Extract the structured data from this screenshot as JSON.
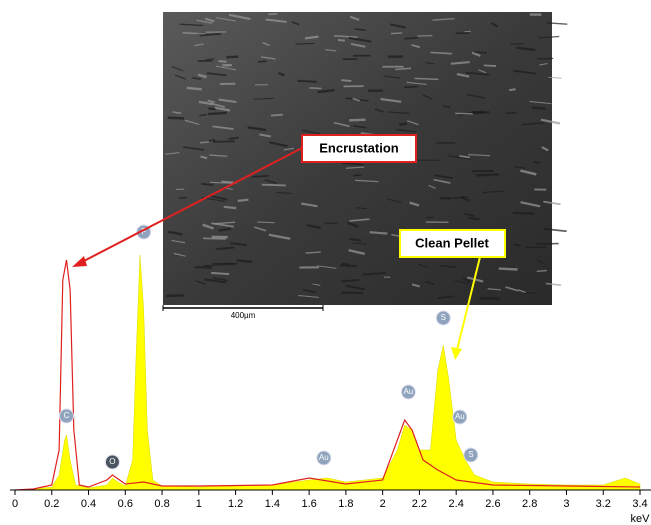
{
  "chart_data": {
    "type": "spectrum",
    "xlabel": "keV",
    "xlim": [
      0,
      3.4
    ],
    "xticks": [
      0,
      0.2,
      0.4,
      0.6,
      0.8,
      1,
      1.2,
      1.4,
      1.6,
      1.8,
      2,
      2.2,
      2.4,
      2.6,
      2.8,
      3,
      3.2,
      3.4
    ],
    "ylim": [
      0,
      250
    ],
    "series": [
      {
        "color": "#ffff00",
        "style": "area",
        "x": [
          0,
          0.1,
          0.2,
          0.24,
          0.27,
          0.28,
          0.3,
          0.33,
          0.4,
          0.5,
          0.53,
          0.56,
          0.6,
          0.64,
          0.66,
          0.68,
          0.7,
          0.72,
          0.75,
          0.8,
          1.0,
          1.2,
          1.4,
          1.6,
          1.7,
          1.8,
          2.0,
          2.08,
          2.12,
          2.16,
          2.2,
          2.26,
          2.3,
          2.33,
          2.36,
          2.4,
          2.45,
          2.5,
          2.6,
          2.8,
          3.0,
          3.2,
          3.32,
          3.4
        ],
        "values": [
          0,
          1,
          3,
          15,
          50,
          55,
          30,
          5,
          2,
          5,
          12,
          8,
          4,
          30,
          140,
          235,
          180,
          60,
          10,
          4,
          3,
          4,
          5,
          10,
          12,
          8,
          12,
          40,
          65,
          60,
          40,
          40,
          120,
          145,
          110,
          50,
          30,
          15,
          8,
          6,
          5,
          5,
          12,
          6
        ]
      },
      {
        "color": "#e02020",
        "style": "line",
        "x": [
          0,
          0.1,
          0.2,
          0.24,
          0.26,
          0.28,
          0.3,
          0.32,
          0.35,
          0.4,
          0.5,
          0.53,
          0.6,
          0.7,
          0.8,
          1.0,
          1.4,
          1.6,
          1.8,
          2.0,
          2.08,
          2.12,
          2.16,
          2.22,
          2.3,
          2.4,
          2.6,
          3.0,
          3.4
        ],
        "values": [
          0,
          1,
          5,
          40,
          210,
          230,
          200,
          60,
          5,
          3,
          10,
          15,
          6,
          8,
          4,
          4,
          5,
          12,
          6,
          10,
          50,
          70,
          60,
          30,
          20,
          10,
          5,
          4,
          3
        ]
      }
    ],
    "peak_labels": [
      {
        "text": "C",
        "x": 0.28,
        "y": 66
      },
      {
        "text": "O",
        "x": 0.53,
        "y": 20
      },
      {
        "text": "F",
        "x": 0.7,
        "y": 250
      },
      {
        "text": "Au",
        "x": 1.68,
        "y": 24
      },
      {
        "text": "Au",
        "x": 2.14,
        "y": 90
      },
      {
        "text": "S",
        "x": 2.33,
        "y": 164
      },
      {
        "text": "Au",
        "x": 2.42,
        "y": 65
      },
      {
        "text": "S",
        "x": 2.48,
        "y": 27
      }
    ],
    "scale_bar_label": "400µm",
    "encrustation_label": "Encrustation",
    "clean_pellet_label": "Clean Pellet"
  }
}
